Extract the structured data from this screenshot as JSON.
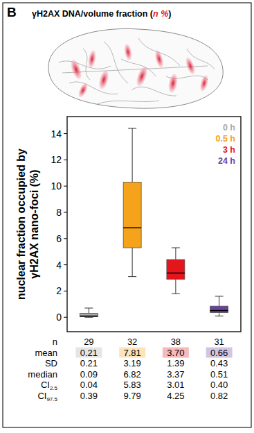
{
  "chart_data": {
    "type": "box",
    "panel": "B",
    "title_parts": [
      "γH2AX DNA/volume fraction (",
      "n %",
      ")"
    ],
    "y_label": "nuclear fraction occupied by γH2AX nano-foci (%)",
    "categories": [
      "0 h",
      "0.5 h",
      "3 h",
      "24 h"
    ],
    "colors": [
      "#a9a9a9",
      "#f5a31a",
      "#e3161c",
      "#6b3fa0"
    ],
    "legend": "top-right",
    "ylim": [
      -1.1,
      15.3
    ],
    "yticks": [
      0,
      2,
      4,
      6,
      8,
      10,
      12,
      14
    ],
    "boxes": {
      "whisker_low": [
        0.0,
        3.1,
        1.8,
        0.1
      ],
      "q1": [
        0.04,
        5.3,
        2.9,
        0.35
      ],
      "median": [
        0.09,
        6.82,
        3.37,
        0.51
      ],
      "q3": [
        0.3,
        10.3,
        4.4,
        0.85
      ],
      "whisker_high": [
        0.7,
        14.4,
        5.3,
        1.6
      ]
    },
    "stats": [
      {
        "label": "n",
        "values": [
          29,
          32,
          38,
          31
        ]
      },
      {
        "label": "mean",
        "values": [
          0.21,
          7.81,
          {
            "value": 3.7,
            "label": "3.70"
          },
          0.66
        ]
      },
      {
        "label": "SD",
        "values": [
          0.21,
          3.19,
          1.39,
          0.43
        ]
      },
      {
        "label": "median",
        "values": [
          0.09,
          6.82,
          3.37,
          0.51
        ]
      },
      {
        "label": "CI",
        "sub": "2.5",
        "values": [
          0.04,
          5.83,
          3.01,
          {
            "value": 0.4,
            "label": "0.40"
          }
        ]
      },
      {
        "label": "CI",
        "sub": "97.5",
        "values": [
          0.39,
          9.79,
          4.25,
          0.82
        ]
      }
    ]
  }
}
